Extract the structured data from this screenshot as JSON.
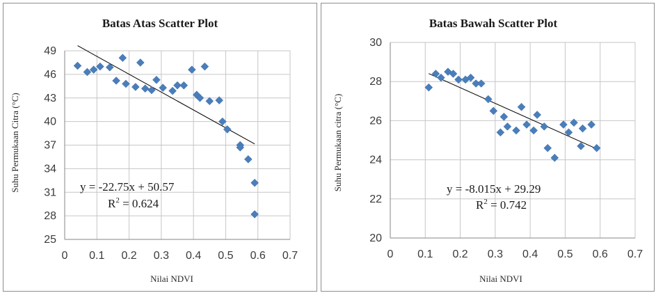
{
  "colors": {
    "marker": "#4a7ebb",
    "trendline": "#000000",
    "grid": "#c6c6c6",
    "axis": "#868686"
  },
  "chart_data": [
    {
      "type": "scatter",
      "title": "Batas Atas Scatter Plot",
      "xlabel": "Nilai NDVI",
      "ylabel": "Suhu Permukaan Citra (°C)",
      "xlim": [
        0,
        0.7
      ],
      "ylim": [
        25,
        49
      ],
      "xticks": [
        0,
        0.1,
        0.2,
        0.3,
        0.4,
        0.5,
        0.6,
        0.7
      ],
      "xtick_labels": [
        "0",
        "0.1",
        "0.2",
        "0.3",
        "0.4",
        "0.5",
        "0.6",
        "0.7"
      ],
      "yticks": [
        25,
        28,
        31,
        34,
        37,
        40,
        43,
        46,
        49
      ],
      "ytick_labels": [
        "25",
        "28",
        "31",
        "34",
        "37",
        "40",
        "43",
        "46",
        "49"
      ],
      "grid": true,
      "points": [
        {
          "x": 0.04,
          "y": 47.1
        },
        {
          "x": 0.07,
          "y": 46.3
        },
        {
          "x": 0.09,
          "y": 46.6
        },
        {
          "x": 0.11,
          "y": 47.0
        },
        {
          "x": 0.14,
          "y": 46.9
        },
        {
          "x": 0.16,
          "y": 45.2
        },
        {
          "x": 0.18,
          "y": 48.1
        },
        {
          "x": 0.19,
          "y": 44.8
        },
        {
          "x": 0.22,
          "y": 44.4
        },
        {
          "x": 0.235,
          "y": 47.5
        },
        {
          "x": 0.25,
          "y": 44.2
        },
        {
          "x": 0.27,
          "y": 44.0
        },
        {
          "x": 0.285,
          "y": 45.3
        },
        {
          "x": 0.305,
          "y": 44.3
        },
        {
          "x": 0.335,
          "y": 43.9
        },
        {
          "x": 0.35,
          "y": 44.6
        },
        {
          "x": 0.37,
          "y": 44.6
        },
        {
          "x": 0.395,
          "y": 46.6
        },
        {
          "x": 0.41,
          "y": 43.4
        },
        {
          "x": 0.42,
          "y": 43.0
        },
        {
          "x": 0.435,
          "y": 47.0
        },
        {
          "x": 0.45,
          "y": 42.6
        },
        {
          "x": 0.48,
          "y": 42.7
        },
        {
          "x": 0.49,
          "y": 40.0
        },
        {
          "x": 0.505,
          "y": 39.0
        },
        {
          "x": 0.545,
          "y": 37.0
        },
        {
          "x": 0.545,
          "y": 36.7
        },
        {
          "x": 0.57,
          "y": 35.2
        },
        {
          "x": 0.59,
          "y": 32.2
        },
        {
          "x": 0.59,
          "y": 28.2
        }
      ],
      "trendline": {
        "slope": -22.75,
        "intercept": 50.57,
        "x_range": [
          0.04,
          0.59
        ]
      },
      "annotations": {
        "equation": "y = -22.75x + 50.57",
        "r2_prefix": "R",
        "r2_sup": "2",
        "r2_value": " = 0.624"
      }
    },
    {
      "type": "scatter",
      "title": "Batas Bawah Scatter Plot",
      "xlabel": "Nilai NDVI",
      "ylabel": "Suhu Permukaan citra (°C)",
      "xlim": [
        0,
        0.7
      ],
      "ylim": [
        20,
        30
      ],
      "xticks": [
        0,
        0.1,
        0.2,
        0.3,
        0.4,
        0.5,
        0.6,
        0.7
      ],
      "xtick_labels": [
        "0",
        "0.1",
        "0.2",
        "0.3",
        "0.4",
        "0.5",
        "0.6",
        "0.7"
      ],
      "yticks": [
        20,
        22,
        24,
        26,
        28,
        30
      ],
      "ytick_labels": [
        "20",
        "22",
        "24",
        "26",
        "28",
        "30"
      ],
      "grid": true,
      "points": [
        {
          "x": 0.11,
          "y": 27.7
        },
        {
          "x": 0.13,
          "y": 28.4
        },
        {
          "x": 0.145,
          "y": 28.2
        },
        {
          "x": 0.165,
          "y": 28.5
        },
        {
          "x": 0.18,
          "y": 28.4
        },
        {
          "x": 0.195,
          "y": 28.1
        },
        {
          "x": 0.215,
          "y": 28.1
        },
        {
          "x": 0.23,
          "y": 28.2
        },
        {
          "x": 0.245,
          "y": 27.9
        },
        {
          "x": 0.26,
          "y": 27.9
        },
        {
          "x": 0.28,
          "y": 27.1
        },
        {
          "x": 0.295,
          "y": 26.5
        },
        {
          "x": 0.315,
          "y": 25.4
        },
        {
          "x": 0.325,
          "y": 26.2
        },
        {
          "x": 0.335,
          "y": 25.7
        },
        {
          "x": 0.36,
          "y": 25.5
        },
        {
          "x": 0.375,
          "y": 26.7
        },
        {
          "x": 0.39,
          "y": 25.8
        },
        {
          "x": 0.41,
          "y": 25.5
        },
        {
          "x": 0.42,
          "y": 26.3
        },
        {
          "x": 0.44,
          "y": 25.7
        },
        {
          "x": 0.45,
          "y": 24.6
        },
        {
          "x": 0.47,
          "y": 24.1
        },
        {
          "x": 0.495,
          "y": 25.8
        },
        {
          "x": 0.51,
          "y": 25.4
        },
        {
          "x": 0.525,
          "y": 25.9
        },
        {
          "x": 0.545,
          "y": 24.7
        },
        {
          "x": 0.55,
          "y": 25.6
        },
        {
          "x": 0.575,
          "y": 25.8
        },
        {
          "x": 0.59,
          "y": 24.6
        }
      ],
      "trendline": {
        "slope": -8.015,
        "intercept": 29.29,
        "x_range": [
          0.11,
          0.59
        ]
      },
      "annotations": {
        "equation": "y = -8.015x + 29.29",
        "r2_prefix": "R",
        "r2_sup": "2",
        "r2_value": " = 0.742"
      }
    }
  ]
}
